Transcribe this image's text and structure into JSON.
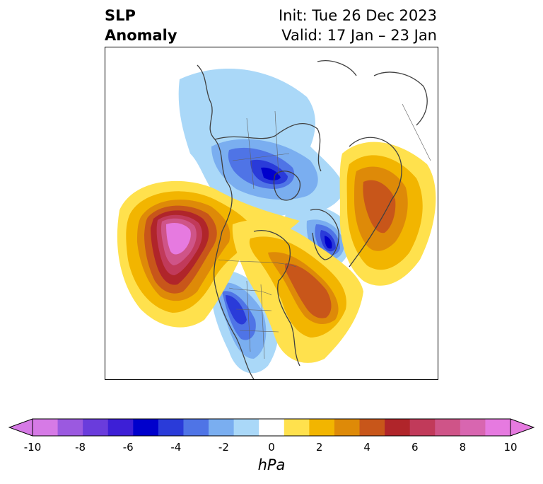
{
  "title": {
    "left_line1": "SLP",
    "left_line2": "Anomaly",
    "right_line1": "Init: Tue 26 Dec 2023",
    "right_line2": "Valid: 17 Jan – 23 Jan"
  },
  "colorbar": {
    "unit": "hPa",
    "ticks": [
      "-10",
      "-8",
      "-6",
      "-4",
      "-2",
      "0",
      "2",
      "4",
      "6",
      "8",
      "10"
    ],
    "colors": [
      "#d67ae6",
      "#9b59e0",
      "#6a3cdc",
      "#3d1fd6",
      "#0000cc",
      "#2a3bd9",
      "#4f74e6",
      "#7aaef0",
      "#aad8f8",
      "#ffffff",
      "#ffe14d",
      "#f2b500",
      "#de8a08",
      "#c8561a",
      "#b0252a",
      "#c13a5a",
      "#cf5488",
      "#d866b0",
      "#e67ae0"
    ],
    "min_color": "#d67ae6",
    "max_color": "#e67ae0"
  },
  "map_anomalies": [
    {
      "name": "pacific-high",
      "sign": "positive",
      "peak_hpa": 10
    },
    {
      "name": "atlantic-high",
      "sign": "positive",
      "peak_hpa": 5
    },
    {
      "name": "greenland-high",
      "sign": "positive",
      "peak_hpa": 5
    },
    {
      "name": "hudson-low",
      "sign": "negative",
      "peak_hpa": -6
    },
    {
      "name": "baffin-low",
      "sign": "negative",
      "peak_hpa": -6
    },
    {
      "name": "southwest-us-low",
      "sign": "negative",
      "peak_hpa": -5
    }
  ]
}
